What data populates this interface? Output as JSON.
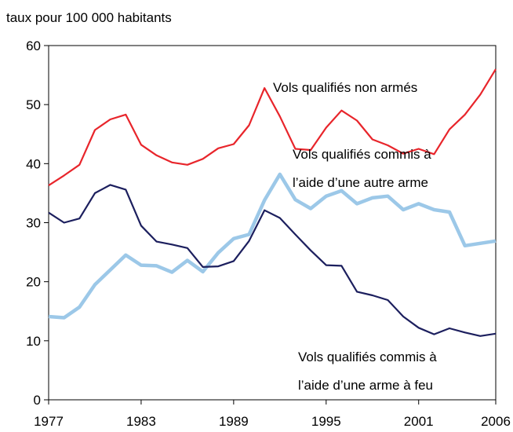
{
  "chart_data": {
    "type": "line",
    "y_axis_label": "taux pour 100 000 habitants",
    "x": [
      1977,
      1978,
      1979,
      1980,
      1981,
      1982,
      1983,
      1984,
      1985,
      1986,
      1987,
      1988,
      1989,
      1990,
      1991,
      1992,
      1993,
      1994,
      1995,
      1996,
      1997,
      1998,
      1999,
      2000,
      2001,
      2002,
      2003,
      2004,
      2005,
      2006
    ],
    "series": [
      {
        "name": "Vols qualifiés non armés",
        "color": "#e8252b",
        "values": [
          36.3,
          38,
          39.8,
          45.7,
          47.5,
          48.3,
          43.2,
          41.4,
          40.2,
          39.8,
          40.8,
          42.6,
          43.3,
          46.5,
          52.8,
          48,
          42.5,
          42.3,
          46.1,
          49,
          47.3,
          44.1,
          43.1,
          41.7,
          42.5,
          41.6,
          45.8,
          48.3,
          51.7,
          56
        ]
      },
      {
        "name": "Vols qualifiés commis à\nl’aide d’une autre arme",
        "color": "#9cc8e8",
        "values": [
          14.1,
          13.9,
          15.7,
          19.5,
          22,
          24.5,
          22.8,
          22.7,
          21.6,
          23.6,
          21.7,
          24.9,
          27.3,
          28,
          33.8,
          38.2,
          33.9,
          32.4,
          34.5,
          35.4,
          33.2,
          34.2,
          34.5,
          32.2,
          33.2,
          32.2,
          31.8,
          26.1,
          26.5,
          26.9
        ]
      },
      {
        "name": "Vols qualifiés commis à\nl’aide d’une arme à feu",
        "color": "#1c1f5e",
        "values": [
          31.7,
          30,
          30.7,
          35,
          36.4,
          35.6,
          29.5,
          26.8,
          26.3,
          25.7,
          22.5,
          22.6,
          23.5,
          26.9,
          32.1,
          30.8,
          28,
          25.3,
          22.8,
          22.7,
          18.3,
          17.7,
          16.9,
          14.1,
          12.2,
          11.1,
          12.1,
          11.4,
          10.8,
          11.2
        ]
      }
    ],
    "xlim": [
      1977,
      2006
    ],
    "xticks": [
      1977,
      1983,
      1989,
      1995,
      2001,
      2006
    ],
    "ylim": [
      0,
      60
    ],
    "yticks": [
      0,
      10,
      20,
      30,
      40,
      50,
      60
    ]
  }
}
